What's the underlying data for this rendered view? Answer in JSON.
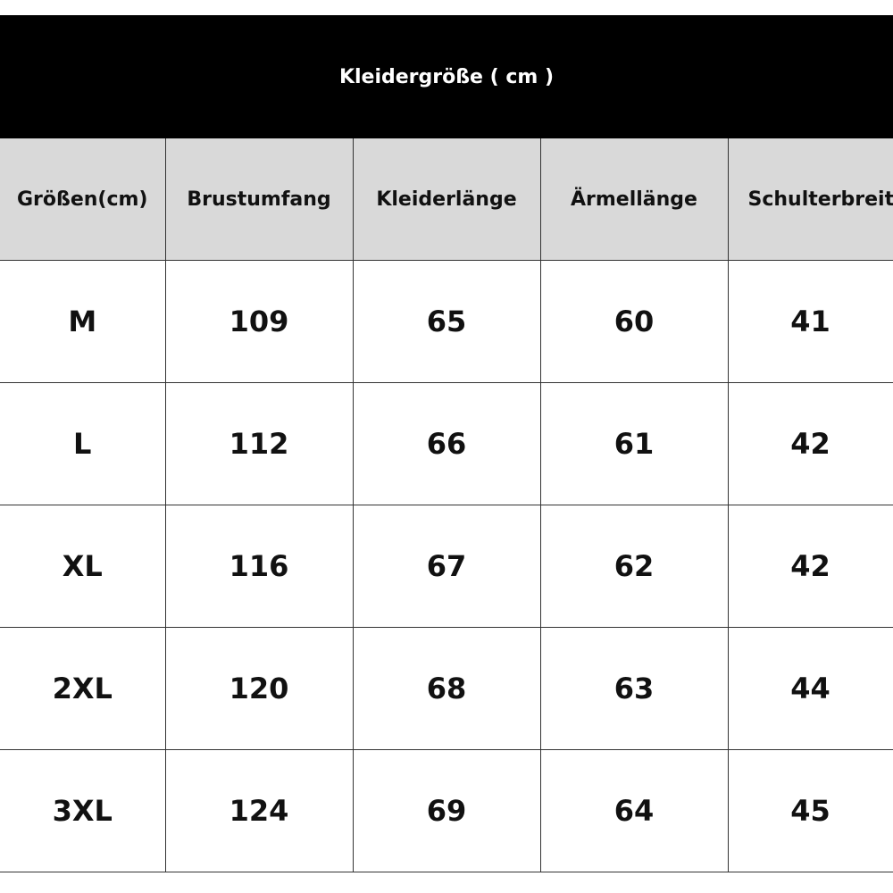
{
  "title": "Kleidergröße ( cm )",
  "headers": [
    "Größen(cm)",
    "Brustumfang",
    "Kleiderlänge",
    "Ärmellänge",
    "Schulterbreite"
  ],
  "rows": [
    [
      "M",
      "109",
      "65",
      "60",
      "41"
    ],
    [
      "L",
      "112",
      "66",
      "61",
      "42"
    ],
    [
      "XL",
      "116",
      "67",
      "62",
      "42"
    ],
    [
      "2XL",
      "120",
      "68",
      "63",
      "44"
    ],
    [
      "3XL",
      "124",
      "69",
      "64",
      "45"
    ]
  ],
  "colors": {
    "title_background": "#000000",
    "title_text": "#ffffff",
    "header_background": "#d9d9d9",
    "body_background": "#ffffff"
  }
}
